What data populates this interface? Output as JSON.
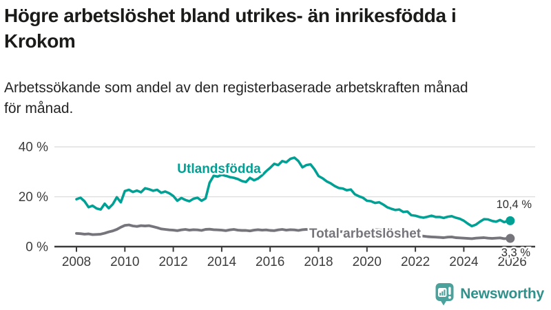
{
  "header": {
    "title_lines": [
      "Högre arbetslöshet bland utrikes- än inrikesfödda i",
      "Krokom"
    ],
    "subtitle_lines": [
      "Arbetssökande som andel av den registerbaserade arbetskraften månad",
      "för månad."
    ]
  },
  "chart_data": {
    "type": "line",
    "title": "Högre arbetslöshet bland utrikes- än inrikesfödda i Krokom",
    "subtitle": "Arbetssökande som andel av den registerbaserade arbetskraften månad för månad.",
    "y_unit": "%",
    "ylim": [
      0,
      42
    ],
    "grid": "horizontal",
    "legend": "inline-labels",
    "x_start": 2008.0,
    "x_step_years": 0.166667,
    "y_ticks": [
      {
        "value": 0,
        "label": "0 %"
      },
      {
        "value": 20,
        "label": "20 %"
      },
      {
        "value": 40,
        "label": "40 %"
      }
    ],
    "x_ticks": [
      {
        "value": 2008,
        "label": "2008"
      },
      {
        "value": 2010,
        "label": "2010"
      },
      {
        "value": 2012,
        "label": "2012"
      },
      {
        "value": 2014,
        "label": "2014"
      },
      {
        "value": 2016,
        "label": "2016"
      },
      {
        "value": 2018,
        "label": "2018"
      },
      {
        "value": 2020,
        "label": "2020"
      },
      {
        "value": 2022,
        "label": "2022"
      },
      {
        "value": 2024,
        "label": "2024"
      },
      {
        "value": 2026,
        "label": "2026"
      }
    ],
    "series": [
      {
        "name": "Utlandsfödda",
        "color": "#00a095",
        "end_label": "10,4 %",
        "end_value": 10.4,
        "values": [
          19.0,
          19.6,
          18.2,
          15.8,
          16.4,
          15.3,
          14.9,
          17.2,
          15.4,
          17.0,
          19.8,
          17.8,
          22.3,
          22.8,
          21.9,
          22.5,
          21.8,
          23.4,
          23.0,
          22.4,
          22.8,
          21.6,
          22.1,
          21.4,
          20.3,
          18.4,
          19.5,
          18.7,
          18.2,
          19.2,
          19.6,
          18.4,
          19.3,
          25.6,
          28.4,
          28.1,
          28.8,
          28.4,
          27.9,
          27.6,
          27.1,
          26.3,
          25.9,
          27.6,
          26.6,
          27.3,
          28.6,
          30.2,
          31.6,
          33.2,
          32.7,
          34.3,
          33.8,
          35.2,
          35.7,
          34.3,
          31.8,
          32.7,
          33.0,
          31.0,
          28.3,
          27.4,
          26.2,
          25.4,
          24.3,
          23.5,
          23.3,
          22.6,
          22.9,
          21.0,
          20.2,
          19.6,
          18.4,
          18.2,
          17.5,
          17.8,
          16.9,
          15.8,
          15.2,
          14.7,
          14.9,
          13.9,
          14.1,
          12.6,
          12.4,
          11.9,
          11.6,
          12.0,
          12.4,
          11.9,
          11.9,
          11.5,
          12.0,
          12.2,
          11.6,
          11.2,
          10.4,
          9.2,
          8.2,
          8.8,
          10.0,
          11.0,
          10.9,
          10.3,
          10.0,
          10.7,
          9.8,
          10.4
        ]
      },
      {
        "name": "Total arbetslöshet",
        "color": "#76757b",
        "end_label": "3,3 %",
        "end_value": 3.3,
        "values": [
          5.3,
          5.2,
          5.0,
          5.1,
          4.8,
          4.9,
          5.0,
          5.4,
          5.9,
          6.3,
          6.9,
          7.8,
          8.5,
          8.7,
          8.3,
          8.1,
          8.4,
          8.3,
          8.4,
          8.0,
          7.6,
          7.1,
          6.9,
          6.7,
          6.6,
          6.4,
          6.7,
          6.9,
          6.6,
          6.8,
          6.7,
          6.5,
          6.9,
          7.0,
          6.8,
          6.7,
          6.6,
          6.4,
          6.7,
          6.9,
          6.6,
          6.5,
          6.5,
          6.3,
          6.6,
          6.8,
          6.6,
          6.7,
          6.5,
          6.4,
          6.7,
          6.9,
          6.6,
          6.8,
          6.7,
          6.5,
          6.8,
          6.9,
          6.6,
          6.6,
          6.5,
          6.3,
          6.4,
          6.2,
          6.0,
          6.1,
          5.9,
          5.8,
          5.7,
          5.6,
          5.7,
          5.8,
          5.8,
          6.2,
          6.8,
          6.7,
          6.5,
          6.3,
          6.1,
          5.9,
          5.7,
          5.4,
          5.2,
          5.0,
          4.7,
          4.4,
          4.2,
          4.0,
          3.9,
          3.8,
          3.7,
          3.6,
          3.8,
          3.9,
          3.6,
          3.5,
          3.4,
          3.3,
          3.2,
          3.4,
          3.5,
          3.6,
          3.4,
          3.3,
          3.4,
          3.5,
          3.2,
          3.3
        ]
      }
    ]
  },
  "branding": {
    "logo_text": "Newsworthy",
    "logo_icon": "bar-chart-speech-bubble-icon",
    "text_color": "#2f918b",
    "icon_color": "#4ba19b"
  }
}
